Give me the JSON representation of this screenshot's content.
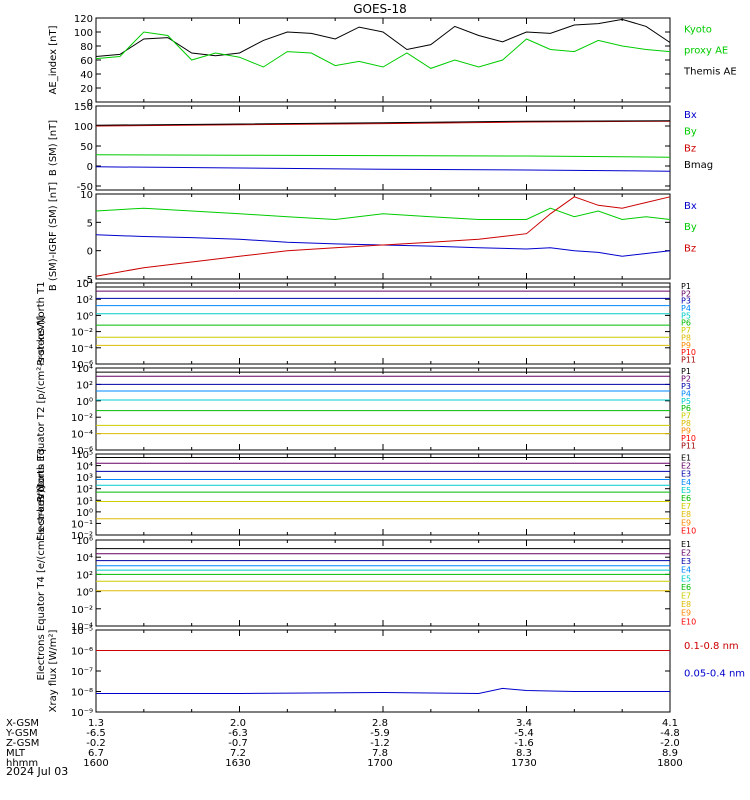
{
  "title": "GOES-18",
  "date_label": "2024 Jul 03",
  "colors": {
    "black": "#000000",
    "green": "#00cc00",
    "blue": "#0000cc",
    "red": "#cc0000"
  },
  "p_colors": [
    "#000000",
    "#660066",
    "#0000aa",
    "#0088ff",
    "#00cccc",
    "#00bb00",
    "#cccc00",
    "#ddbb00",
    "#ff8800",
    "#ff0000",
    "#990000"
  ],
  "e_colors": [
    "#000000",
    "#660066",
    "#0000aa",
    "#0088ff",
    "#00cccc",
    "#00bb00",
    "#cccc00",
    "#ddbb00",
    "#ff8800",
    "#ff0000"
  ],
  "footer": {
    "rows": [
      {
        "label": "X-GSM",
        "values": [
          "1.3",
          "2.0",
          "2.8",
          "3.4",
          "4.1"
        ]
      },
      {
        "label": "Y-GSM",
        "values": [
          "-6.5",
          "-6.3",
          "-5.9",
          "-5.4",
          "-4.8"
        ]
      },
      {
        "label": "Z-GSM",
        "values": [
          "-0.2",
          "-0.7",
          "-1.2",
          "-1.6",
          "-2.0"
        ]
      },
      {
        "label": "MLT",
        "values": [
          "6.7",
          "7.2",
          "7.8",
          "8.3",
          "8.9"
        ]
      },
      {
        "label": "hhmm",
        "values": [
          "1600",
          "1630",
          "1700",
          "1730",
          "1800"
        ]
      }
    ]
  },
  "chart_data": [
    {
      "type": "line",
      "ylabel": "AE_index [nT]",
      "ylim": [
        0,
        120
      ],
      "yticks": [
        "0",
        "20",
        "40",
        "60",
        "80",
        "100",
        "120"
      ],
      "x": [
        0,
        5,
        10,
        15,
        20,
        25,
        30,
        35,
        40,
        45,
        50,
        55,
        60,
        65,
        70,
        75,
        80,
        85,
        90,
        95,
        100,
        105,
        110,
        115,
        120
      ],
      "series": [
        {
          "name": "Themis AE",
          "color": "#000000",
          "values": [
            65,
            68,
            90,
            92,
            70,
            66,
            70,
            88,
            100,
            98,
            90,
            107,
            100,
            75,
            82,
            108,
            95,
            86,
            100,
            98,
            110,
            112,
            118,
            108,
            85
          ]
        },
        {
          "name": "Kyoto proxy AE",
          "color": "#00cc00",
          "values": [
            62,
            65,
            100,
            95,
            60,
            70,
            64,
            50,
            72,
            70,
            52,
            58,
            50,
            70,
            48,
            60,
            50,
            60,
            90,
            75,
            72,
            88,
            80,
            75,
            72
          ]
        }
      ],
      "legend": [
        {
          "text": "Kyoto",
          "color": "#00cc00"
        },
        {
          "text": "proxy AE",
          "color": "#00cc00"
        },
        {
          "text": "Themis AE",
          "color": "#000000"
        }
      ]
    },
    {
      "type": "line",
      "ylabel": "B (SM) [nT]",
      "ylim": [
        -60,
        150
      ],
      "yticks": [
        "-50",
        "0",
        "50",
        "100",
        "150"
      ],
      "x": [
        0,
        30,
        60,
        90,
        120
      ],
      "series": [
        {
          "name": "Bx",
          "color": "#0000cc",
          "values": [
            -2,
            -5,
            -8,
            -10,
            -13
          ]
        },
        {
          "name": "By",
          "color": "#00cc00",
          "values": [
            28,
            27,
            26,
            25,
            22
          ]
        },
        {
          "name": "Bz",
          "color": "#cc0000",
          "values": [
            100,
            103,
            106,
            110,
            112
          ]
        },
        {
          "name": "Bmag",
          "color": "#000000",
          "values": [
            102,
            105,
            108,
            112,
            113
          ]
        }
      ],
      "legend": [
        {
          "text": "Bx",
          "color": "#0000cc"
        },
        {
          "text": "By",
          "color": "#00cc00"
        },
        {
          "text": "Bz",
          "color": "#cc0000"
        },
        {
          "text": "Bmag",
          "color": "#000000"
        }
      ]
    },
    {
      "type": "line",
      "ylabel": "B (SM)-IGRF (SM) [nT]",
      "ylim": [
        -5,
        10
      ],
      "yticks": [
        "-5",
        "0",
        "5",
        "10"
      ],
      "x": [
        0,
        10,
        20,
        30,
        40,
        50,
        60,
        70,
        80,
        90,
        95,
        100,
        105,
        110,
        115,
        120
      ],
      "series": [
        {
          "name": "Bx",
          "color": "#0000cc",
          "values": [
            2.8,
            2.5,
            2.3,
            2.0,
            1.5,
            1.2,
            1.0,
            0.8,
            0.5,
            0.3,
            0.5,
            0.0,
            -0.3,
            -1.0,
            -0.5,
            0.0
          ]
        },
        {
          "name": "By",
          "color": "#00cc00",
          "values": [
            7,
            7.5,
            7.0,
            6.5,
            6.0,
            5.5,
            6.5,
            6.0,
            5.5,
            5.5,
            7.5,
            6.0,
            7.0,
            5.5,
            6.0,
            5.5
          ]
        },
        {
          "name": "Bz",
          "color": "#cc0000",
          "values": [
            -4.5,
            -3.0,
            -2.0,
            -1.0,
            0.0,
            0.5,
            1.0,
            1.5,
            2.0,
            3.0,
            6.5,
            9.5,
            8.0,
            7.5,
            8.5,
            9.5
          ]
        }
      ],
      "legend": [
        {
          "text": "Bx",
          "color": "#0000cc"
        },
        {
          "text": "By",
          "color": "#00cc00"
        },
        {
          "text": "Bz",
          "color": "#cc0000"
        }
      ]
    },
    {
      "type": "line",
      "log": true,
      "ylabel": "Protons North T1",
      "ylim_exp": [
        -6,
        4
      ],
      "yticks": [
        "10⁻⁶",
        "10⁻⁴",
        "10⁻²",
        "10⁰",
        "10²",
        "10⁴"
      ],
      "channels": [
        "P1",
        "P2",
        "P3",
        "P4",
        "P5",
        "P6",
        "P7",
        "P8",
        "P9",
        "P10",
        "P11"
      ],
      "levels_exp": [
        3.5,
        3.0,
        2.1,
        1.2,
        0.2,
        -1.2,
        -2.7,
        -3.7,
        null,
        null,
        null
      ]
    },
    {
      "type": "line",
      "log": true,
      "ylabel": "Protons Equator T2 [p/(cm²-s-sr-keV)]",
      "ylim_exp": [
        -6,
        4
      ],
      "yticks": [
        "10⁻⁶",
        "10⁻⁴",
        "10⁻²",
        "10⁰",
        "10²",
        "10⁴"
      ],
      "channels": [
        "P1",
        "P2",
        "P3",
        "P4",
        "P5",
        "P6",
        "P7",
        "P8",
        "P9",
        "P10",
        "P11"
      ],
      "levels_exp": [
        3.5,
        3.0,
        2.0,
        1.2,
        0.1,
        -1.2,
        -3.0,
        -4.0,
        null,
        null,
        null
      ]
    },
    {
      "type": "line",
      "log": true,
      "ylabel": "Electrons North T3",
      "ylim_exp": [
        -2,
        5
      ],
      "yticks": [
        "10⁻²",
        "10⁻¹",
        "10⁰",
        "10¹",
        "10²",
        "10³",
        "10⁴",
        "10⁵"
      ],
      "channels": [
        "E1",
        "E2",
        "E3",
        "E4",
        "E5",
        "E6",
        "E7",
        "E8",
        "E9",
        "E10"
      ],
      "levels_exp": [
        4.7,
        4.2,
        3.5,
        2.8,
        2.3,
        1.7,
        0.9,
        -0.6,
        null,
        null
      ]
    },
    {
      "type": "line",
      "log": true,
      "ylabel": "Electrons Equator T4 [e/(cm²-s-sr-keV)]",
      "ylim_exp": [
        -4,
        6
      ],
      "yticks": [
        "10⁻⁴",
        "10⁻²",
        "10⁰",
        "10²",
        "10⁴",
        "10⁶"
      ],
      "channels": [
        "E1",
        "E2",
        "E3",
        "E4",
        "E5",
        "E6",
        "E7",
        "E8",
        "E9",
        "E10"
      ],
      "levels_exp": [
        5.0,
        4.4,
        3.6,
        3.0,
        2.5,
        2.0,
        1.2,
        0.1,
        null,
        null
      ]
    },
    {
      "type": "line",
      "log": true,
      "ylabel": "Xray flux [W/m²]",
      "ylim_exp": [
        -9,
        -5
      ],
      "yticks": [
        "10⁻⁹",
        "10⁻⁸",
        "10⁻⁷",
        "10⁻⁶",
        "10⁻⁵"
      ],
      "x": [
        0,
        30,
        60,
        80,
        85,
        90,
        100,
        120
      ],
      "series": [
        {
          "name": "0.1-0.8 nm",
          "color": "#cc0000",
          "values_exp": [
            -6.0,
            -6.0,
            -6.0,
            -6.0,
            -6.0,
            -6.0,
            -6.0,
            -6.0
          ]
        },
        {
          "name": "0.05-0.4 nm",
          "color": "#0000cc",
          "values_exp": [
            -8.1,
            -8.1,
            -8.05,
            -8.1,
            -7.85,
            -7.95,
            -8.0,
            -8.0
          ]
        }
      ],
      "legend": [
        {
          "text": "0.1-0.8 nm",
          "color": "#cc0000"
        },
        {
          "text": "0.05-0.4 nm",
          "color": "#0000cc"
        }
      ]
    }
  ]
}
